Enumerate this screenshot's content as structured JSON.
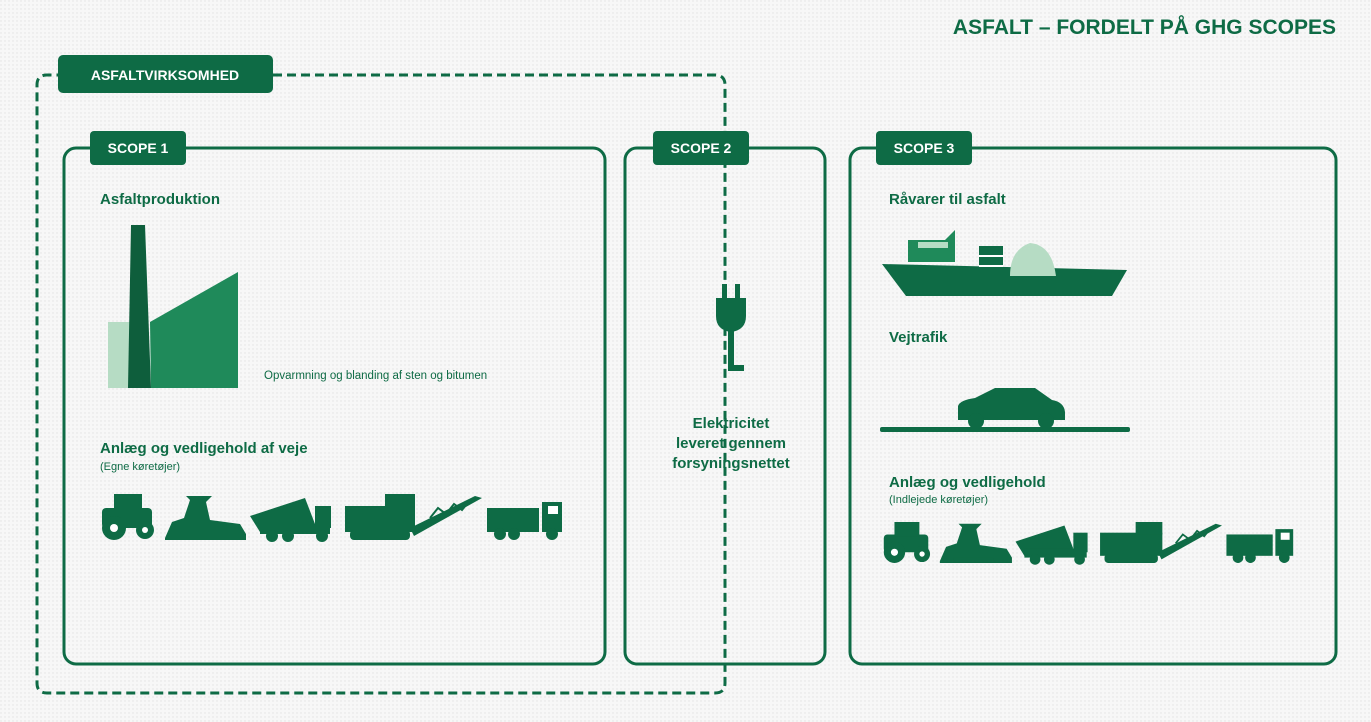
{
  "title": "ASFALT – FORDELT PÅ GHG SCOPES",
  "company": {
    "label": "ASFALTVIRKSOMHED"
  },
  "scope1": {
    "label": "SCOPE 1",
    "production": {
      "heading": "Asfaltproduktion",
      "note": "Opvarmning og blanding af sten og bitumen"
    },
    "roads": {
      "heading": "Anlæg og vedligehold af veje",
      "sub": "(Egne køretøjer)"
    }
  },
  "scope2": {
    "label": "SCOPE 2",
    "lines": [
      "Elektricitet",
      "leveret gennem",
      "forsyningsnettet"
    ]
  },
  "scope3": {
    "label": "SCOPE 3",
    "materials": {
      "heading": "Råvarer til asfalt"
    },
    "traffic": {
      "heading": "Vejtrafik"
    },
    "maintenance": {
      "heading": "Anlæg og vedligehold",
      "sub": "(Indlejede køretøjer)"
    }
  }
}
